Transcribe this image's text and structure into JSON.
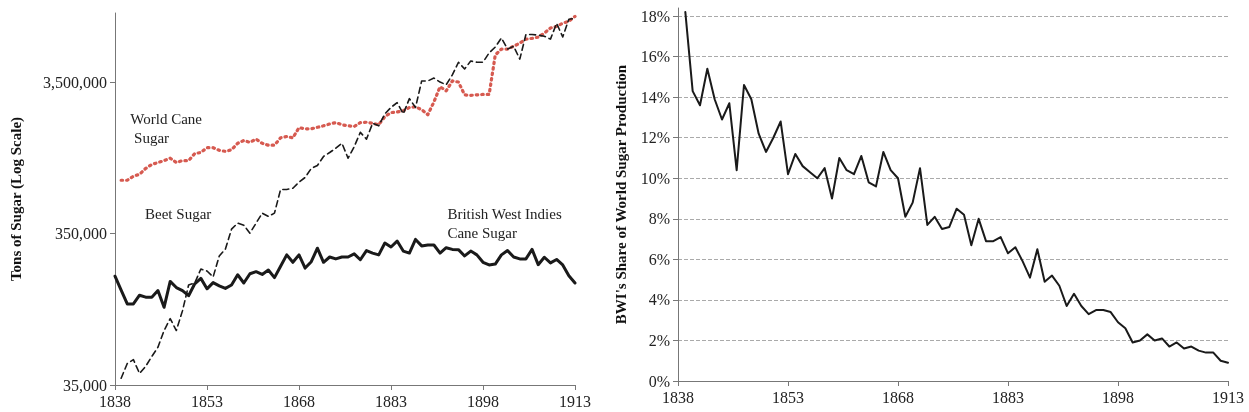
{
  "chart_data": [
    {
      "type": "line",
      "ylabel": "Tons of Sugar (Log Scale)",
      "log": "y",
      "grid": false,
      "legend": false,
      "marker": "none",
      "x": [
        1838,
        1839,
        1840,
        1841,
        1842,
        1843,
        1844,
        1845,
        1846,
        1847,
        1848,
        1849,
        1850,
        1851,
        1852,
        1853,
        1854,
        1855,
        1856,
        1857,
        1858,
        1859,
        1860,
        1861,
        1862,
        1863,
        1864,
        1865,
        1866,
        1867,
        1868,
        1869,
        1870,
        1871,
        1872,
        1873,
        1874,
        1875,
        1876,
        1877,
        1878,
        1879,
        1880,
        1881,
        1882,
        1883,
        1884,
        1885,
        1886,
        1887,
        1888,
        1889,
        1890,
        1891,
        1892,
        1893,
        1894,
        1895,
        1896,
        1897,
        1898,
        1899,
        1900,
        1901,
        1902,
        1903,
        1904,
        1905,
        1906,
        1907,
        1908,
        1909,
        1910,
        1911,
        1912,
        1913
      ],
      "xlim": [
        1838,
        1913
      ],
      "xticks": [
        1838,
        1853,
        1868,
        1883,
        1898,
        1913
      ],
      "ylim": [
        35000,
        10000000
      ],
      "yticks": [
        {
          "value": 35000,
          "label": "35,000"
        },
        {
          "value": 350000,
          "label": "350,000"
        },
        {
          "value": 3500000,
          "label": "3,500,000"
        }
      ],
      "series": [
        {
          "name": "World Cane Sugar",
          "color": "#d65a50",
          "line_style": "dotted",
          "values": [
            null,
            787000,
            787000,
            836000,
            861000,
            942000,
            1000000,
            1030000,
            1060000,
            1100000,
            1030000,
            1060000,
            1060000,
            1180000,
            1200000,
            1290000,
            1290000,
            1240000,
            1220000,
            1250000,
            1380000,
            1440000,
            1400000,
            1470000,
            1380000,
            1340000,
            1340000,
            1500000,
            1530000,
            1500000,
            1750000,
            1720000,
            1720000,
            1760000,
            1800000,
            1850000,
            1890000,
            1830000,
            1800000,
            1780000,
            1890000,
            1900000,
            1870000,
            1830000,
            2070000,
            2200000,
            2220000,
            2260000,
            2380000,
            2400000,
            2300000,
            2130000,
            2590000,
            3260000,
            3060000,
            3560000,
            3500000,
            2880000,
            2860000,
            2880000,
            2900000,
            2900000,
            5280000,
            5780000,
            5780000,
            6030000,
            6330000,
            6720000,
            6800000,
            6930000,
            7360000,
            7960000,
            8160000,
            8560000,
            8830000,
            9490000
          ]
        },
        {
          "name": "Beet Sugar",
          "color": "#1a1a1a",
          "line_style": "dashed",
          "values": [
            null,
            38800,
            48500,
            51500,
            41700,
            46500,
            54000,
            62100,
            80100,
            96000,
            80100,
            108000,
            160000,
            165000,
            204000,
            198000,
            181000,
            249000,
            276000,
            374000,
            410000,
            397000,
            352000,
            410000,
            477000,
            454000,
            477000,
            684000,
            684000,
            697000,
            764000,
            821000,
            942000,
            984000,
            1130000,
            1200000,
            1280000,
            1380000,
            1100000,
            1310000,
            1630000,
            1470000,
            1870000,
            1800000,
            2160000,
            2380000,
            2560000,
            2160000,
            2720000,
            2380000,
            3560000,
            3560000,
            3720000,
            3500000,
            3360000,
            3900000,
            4730000,
            4270000,
            4820000,
            4730000,
            4730000,
            5450000,
            5960000,
            6840000,
            5780000,
            6030000,
            4960000,
            7220000,
            7220000,
            7140000,
            7020000,
            6720000,
            8550000,
            6940000,
            9100000,
            9200000
          ]
        },
        {
          "name": "British West Indies Cane Sugar",
          "color": "#1a1a1a",
          "line_style": "solid",
          "values": [
            183000,
            148000,
            120000,
            120000,
            137000,
            133000,
            133000,
            147000,
            114000,
            169000,
            154000,
            147000,
            136000,
            163000,
            177000,
            151000,
            166000,
            158000,
            152000,
            160000,
            187000,
            165000,
            190000,
            196000,
            188000,
            201000,
            179000,
            213000,
            253000,
            226000,
            253000,
            207000,
            228000,
            280000,
            226000,
            245000,
            238000,
            245000,
            245000,
            257000,
            235000,
            270000,
            260000,
            253000,
            303000,
            285000,
            312000,
            268000,
            260000,
            320000,
            290000,
            294000,
            294000,
            260000,
            282000,
            275000,
            274000,
            249000,
            268000,
            253000,
            226000,
            217000,
            220000,
            253000,
            270000,
            245000,
            238000,
            238000,
            275000,
            218000,
            244000,
            224000,
            236000,
            217000,
            184000,
            165000
          ]
        }
      ]
    },
    {
      "type": "line",
      "ylabel": "BWI's Share of World Sugar Production",
      "grid": "y",
      "legend": false,
      "marker": "none",
      "x": [
        1839,
        1840,
        1841,
        1842,
        1843,
        1844,
        1845,
        1846,
        1847,
        1848,
        1849,
        1850,
        1851,
        1852,
        1853,
        1854,
        1855,
        1856,
        1857,
        1858,
        1859,
        1860,
        1861,
        1862,
        1863,
        1864,
        1865,
        1866,
        1867,
        1868,
        1869,
        1870,
        1871,
        1872,
        1873,
        1874,
        1875,
        1876,
        1877,
        1878,
        1879,
        1880,
        1881,
        1882,
        1883,
        1884,
        1885,
        1886,
        1887,
        1888,
        1889,
        1890,
        1891,
        1892,
        1893,
        1894,
        1895,
        1896,
        1897,
        1898,
        1899,
        1900,
        1901,
        1902,
        1903,
        1904,
        1905,
        1906,
        1907,
        1908,
        1909,
        1910,
        1911,
        1912,
        1913
      ],
      "xlim": [
        1838,
        1913
      ],
      "xticks": [
        1838,
        1853,
        1868,
        1883,
        1898,
        1913
      ],
      "ylim": [
        0,
        18.4
      ],
      "yticks": [
        {
          "value": 0,
          "label": "0%"
        },
        {
          "value": 2,
          "label": "2%"
        },
        {
          "value": 4,
          "label": "4%"
        },
        {
          "value": 6,
          "label": "6%"
        },
        {
          "value": 8,
          "label": "8%"
        },
        {
          "value": 10,
          "label": "10%"
        },
        {
          "value": 12,
          "label": "12%"
        },
        {
          "value": 14,
          "label": "14%"
        },
        {
          "value": 16,
          "label": "16%"
        },
        {
          "value": 18,
          "label": "18%"
        }
      ],
      "series": [
        {
          "color": "#1a1a1a",
          "line_style": "solid",
          "values": [
            18.2,
            14.3,
            13.6,
            15.4,
            13.9,
            12.9,
            13.7,
            10.4,
            14.6,
            13.9,
            12.2,
            11.3,
            12.0,
            12.8,
            10.2,
            11.2,
            10.6,
            10.3,
            10.0,
            10.5,
            9.0,
            11.0,
            10.4,
            10.2,
            11.1,
            9.8,
            9.6,
            11.3,
            10.4,
            10.0,
            8.1,
            8.8,
            10.5,
            7.7,
            8.1,
            7.5,
            7.6,
            8.5,
            8.2,
            6.7,
            8.0,
            6.9,
            6.9,
            7.1,
            6.3,
            6.6,
            5.9,
            5.1,
            6.5,
            4.9,
            5.2,
            4.7,
            3.7,
            4.3,
            3.7,
            3.3,
            3.5,
            3.5,
            3.4,
            2.9,
            2.6,
            1.9,
            2.0,
            2.3,
            2.0,
            2.1,
            1.7,
            1.9,
            1.6,
            1.7,
            1.5,
            1.4,
            1.4,
            1.0,
            0.9
          ]
        }
      ]
    }
  ]
}
